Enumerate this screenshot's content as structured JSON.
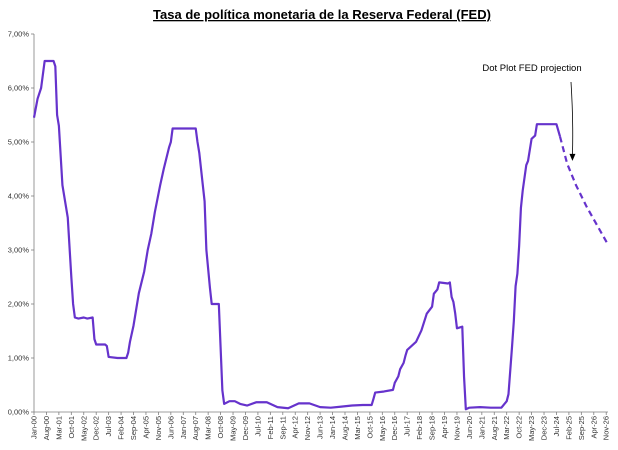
{
  "chart_data": {
    "type": "line",
    "title": "Tasa de política monetaria de la Reserva Federal (FED)",
    "xlabel": "",
    "ylabel": "",
    "ylim": [
      0,
      7
    ],
    "grid": false,
    "legend": "none",
    "y_ticks": [
      "0,00%",
      "1,00%",
      "2,00%",
      "3,00%",
      "4,00%",
      "5,00%",
      "6,00%",
      "7,00%"
    ],
    "y_tick_values": [
      0,
      1,
      2,
      3,
      4,
      5,
      6,
      7
    ],
    "x_ticks": [
      "Jan-00",
      "Aug-00",
      "Mar-01",
      "Oct-01",
      "May-02",
      "Dec-02",
      "Jul-03",
      "Feb-04",
      "Sep-04",
      "Apr-05",
      "Nov-05",
      "Jun-06",
      "Jan-07",
      "Aug-07",
      "Mar-08",
      "Oct-08",
      "May-09",
      "Dec-09",
      "Jul-10",
      "Feb-11",
      "Sep-11",
      "Apr-12",
      "Nov-12",
      "Jun-13",
      "Jan-14",
      "Aug-14",
      "Mar-15",
      "Oct-15",
      "May-16",
      "Dec-16",
      "Jul-17",
      "Feb-18",
      "Sep-18",
      "Apr-19",
      "Nov-19",
      "Jun-20",
      "Jan-21",
      "Aug-21",
      "Mar-22",
      "Oct-22",
      "May-23",
      "Dec-23",
      "Jul-24",
      "Feb-25",
      "Sep-25",
      "Apr-26",
      "Nov-26"
    ],
    "x_range": [
      "2000-01",
      "2026-12"
    ],
    "series": [
      {
        "style": "solid",
        "points": [
          [
            "2000-01",
            5.45
          ],
          [
            "2000-03",
            5.8
          ],
          [
            "2000-05",
            6.0
          ],
          [
            "2000-07",
            6.5
          ],
          [
            "2000-09",
            6.5
          ],
          [
            "2000-12",
            6.5
          ],
          [
            "2001-01",
            6.4
          ],
          [
            "2001-02",
            5.5
          ],
          [
            "2001-03",
            5.3
          ],
          [
            "2001-05",
            4.2
          ],
          [
            "2001-07",
            3.8
          ],
          [
            "2001-08",
            3.6
          ],
          [
            "2001-10",
            2.5
          ],
          [
            "2001-11",
            2.0
          ],
          [
            "2001-12",
            1.75
          ],
          [
            "2002-02",
            1.73
          ],
          [
            "2002-05",
            1.75
          ],
          [
            "2002-07",
            1.73
          ],
          [
            "2002-10",
            1.75
          ],
          [
            "2002-11",
            1.35
          ],
          [
            "2002-12",
            1.25
          ],
          [
            "2003-05",
            1.25
          ],
          [
            "2003-06",
            1.22
          ],
          [
            "2003-07",
            1.02
          ],
          [
            "2003-12",
            1.0
          ],
          [
            "2004-01",
            1.0
          ],
          [
            "2004-05",
            1.0
          ],
          [
            "2004-06",
            1.1
          ],
          [
            "2004-07",
            1.3
          ],
          [
            "2004-09",
            1.6
          ],
          [
            "2004-12",
            2.2
          ],
          [
            "2005-03",
            2.6
          ],
          [
            "2005-05",
            3.0
          ],
          [
            "2005-07",
            3.3
          ],
          [
            "2005-09",
            3.7
          ],
          [
            "2005-12",
            4.2
          ],
          [
            "2006-02",
            4.5
          ],
          [
            "2006-05",
            4.9
          ],
          [
            "2006-06",
            5.0
          ],
          [
            "2006-07",
            5.25
          ],
          [
            "2006-12",
            5.25
          ],
          [
            "2007-03",
            5.25
          ],
          [
            "2007-06",
            5.25
          ],
          [
            "2007-08",
            5.25
          ],
          [
            "2007-09",
            5.0
          ],
          [
            "2007-10",
            4.8
          ],
          [
            "2007-12",
            4.2
          ],
          [
            "2008-01",
            3.9
          ],
          [
            "2008-02",
            3.0
          ],
          [
            "2008-04",
            2.3
          ],
          [
            "2008-05",
            2.0
          ],
          [
            "2008-09",
            2.0
          ],
          [
            "2008-10",
            1.2
          ],
          [
            "2008-11",
            0.4
          ],
          [
            "2008-12",
            0.15
          ],
          [
            "2009-03",
            0.2
          ],
          [
            "2009-06",
            0.2
          ],
          [
            "2009-09",
            0.15
          ],
          [
            "2010-01",
            0.12
          ],
          [
            "2010-06",
            0.18
          ],
          [
            "2010-12",
            0.18
          ],
          [
            "2011-06",
            0.09
          ],
          [
            "2011-12",
            0.07
          ],
          [
            "2012-06",
            0.16
          ],
          [
            "2012-12",
            0.16
          ],
          [
            "2013-06",
            0.09
          ],
          [
            "2013-12",
            0.08
          ],
          [
            "2014-06",
            0.1
          ],
          [
            "2014-12",
            0.12
          ],
          [
            "2015-06",
            0.13
          ],
          [
            "2015-11",
            0.13
          ],
          [
            "2015-12",
            0.24
          ],
          [
            "2016-01",
            0.36
          ],
          [
            "2016-06",
            0.38
          ],
          [
            "2016-11",
            0.41
          ],
          [
            "2016-12",
            0.54
          ],
          [
            "2017-02",
            0.66
          ],
          [
            "2017-03",
            0.79
          ],
          [
            "2017-05",
            0.91
          ],
          [
            "2017-06",
            1.04
          ],
          [
            "2017-07",
            1.15
          ],
          [
            "2017-12",
            1.3
          ],
          [
            "2018-03",
            1.51
          ],
          [
            "2018-06",
            1.82
          ],
          [
            "2018-09",
            1.95
          ],
          [
            "2018-10",
            2.19
          ],
          [
            "2018-12",
            2.27
          ],
          [
            "2019-01",
            2.4
          ],
          [
            "2019-06",
            2.38
          ],
          [
            "2019-07",
            2.4
          ],
          [
            "2019-08",
            2.13
          ],
          [
            "2019-09",
            2.04
          ],
          [
            "2019-10",
            1.83
          ],
          [
            "2019-11",
            1.55
          ],
          [
            "2020-02",
            1.58
          ],
          [
            "2020-03",
            0.65
          ],
          [
            "2020-04",
            0.05
          ],
          [
            "2020-06",
            0.08
          ],
          [
            "2020-12",
            0.09
          ],
          [
            "2021-06",
            0.08
          ],
          [
            "2021-12",
            0.08
          ],
          [
            "2022-03",
            0.2
          ],
          [
            "2022-04",
            0.33
          ],
          [
            "2022-05",
            0.77
          ],
          [
            "2022-06",
            1.21
          ],
          [
            "2022-07",
            1.68
          ],
          [
            "2022-08",
            2.33
          ],
          [
            "2022-09",
            2.56
          ],
          [
            "2022-10",
            3.08
          ],
          [
            "2022-11",
            3.78
          ],
          [
            "2022-12",
            4.1
          ],
          [
            "2023-02",
            4.57
          ],
          [
            "2023-03",
            4.65
          ],
          [
            "2023-05",
            5.06
          ],
          [
            "2023-07",
            5.12
          ],
          [
            "2023-08",
            5.33
          ],
          [
            "2024-06",
            5.33
          ],
          [
            "2024-07",
            5.33
          ],
          [
            "2024-09",
            5.1
          ]
        ]
      },
      {
        "style": "dashed",
        "points": [
          [
            "2024-09",
            5.1
          ],
          [
            "2025-01",
            4.6
          ],
          [
            "2025-06",
            4.2
          ],
          [
            "2025-12",
            3.8
          ],
          [
            "2026-12",
            3.1
          ]
        ]
      }
    ],
    "annotations": [
      {
        "text": "Dot Plot FED projection",
        "arrow_to": [
          "2025-04",
          4.65
        ]
      }
    ],
    "line_color": "#6633cc",
    "axis_color": "#7f7f7f"
  }
}
